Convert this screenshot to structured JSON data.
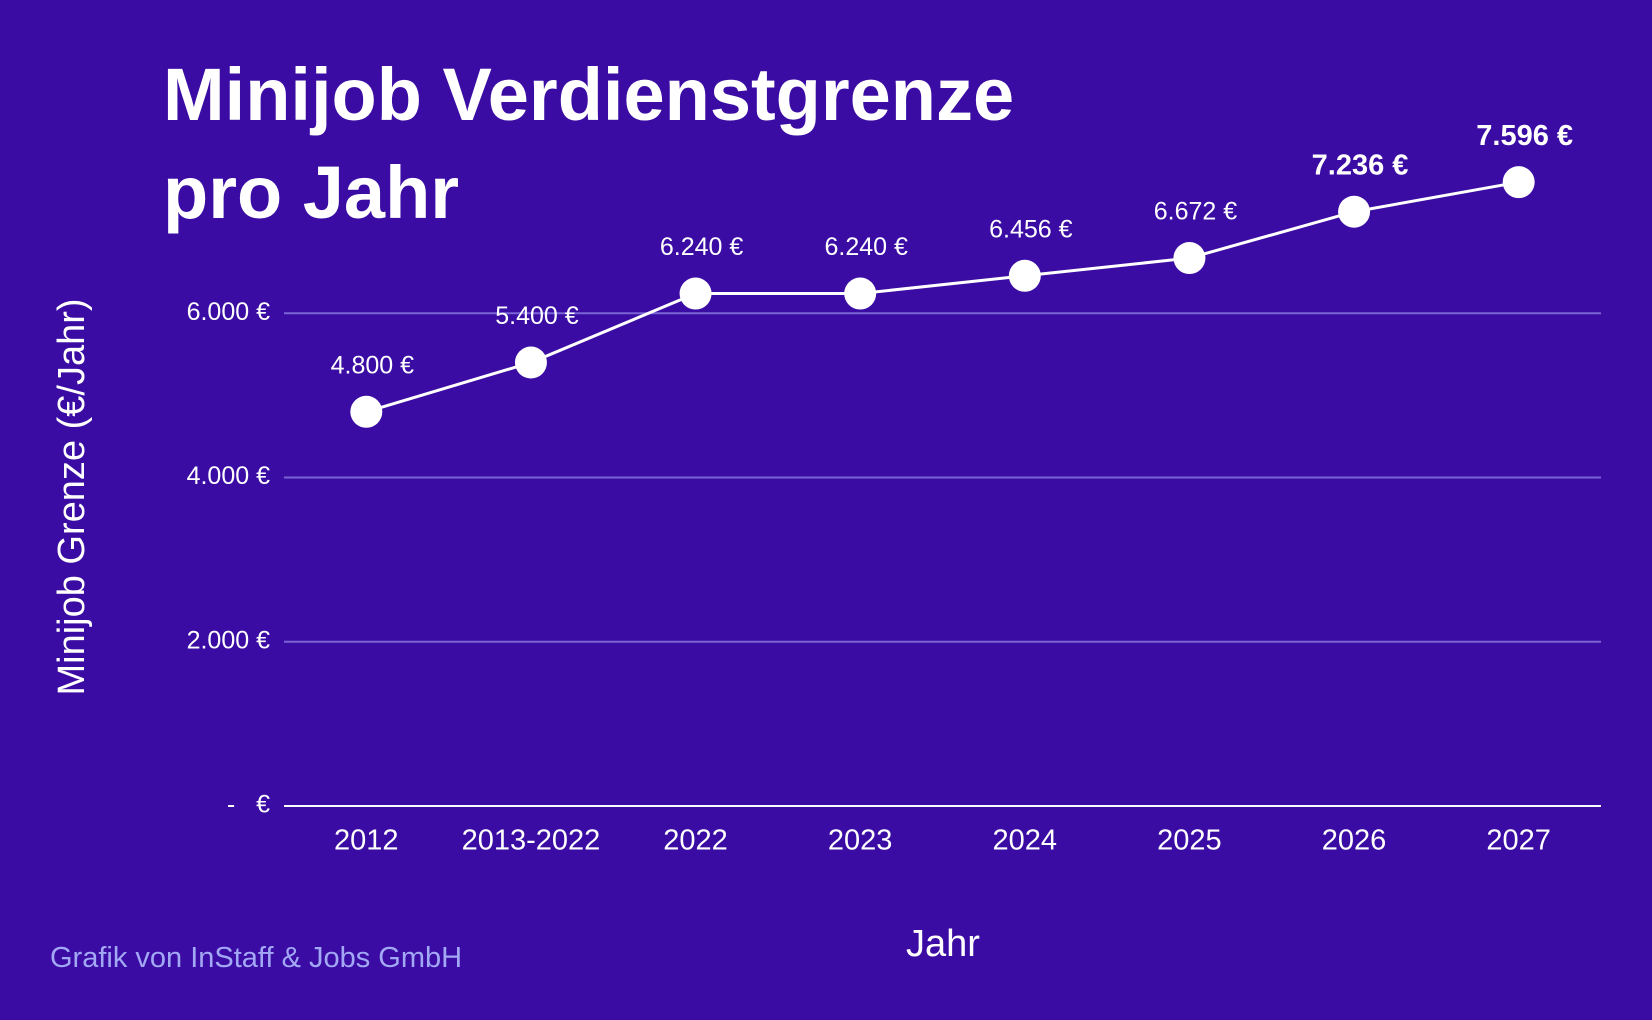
{
  "chart_data": {
    "type": "line",
    "title": "Minijob Verdienstgrenze pro Jahr",
    "x_label": "Jahr",
    "y_label": "Minijob Grenze (€/Jahr)",
    "footer": "Grafik von InStaff & Jobs GmbH",
    "categories": [
      "2012",
      "2013-2022",
      "2022",
      "2023",
      "2024",
      "2025",
      "2026",
      "2027"
    ],
    "series": [
      {
        "name": "Minijob Grenze",
        "color": "#ffffff",
        "values": [
          4800,
          5400,
          6240,
          6240,
          6456,
          6672,
          7236,
          7596
        ],
        "value_labels": [
          "4.800 €",
          "5.400 €",
          "6.240 €",
          "6.240 €",
          "6.456 €",
          "6.672 €",
          "7.236 €",
          "7.596 €"
        ]
      }
    ],
    "ylim": [
      0,
      8000
    ],
    "yticks": [
      {
        "value": 0,
        "label": "-   €"
      },
      {
        "value": 2000,
        "label": "2.000 €"
      },
      {
        "value": 4000,
        "label": "4.000 €"
      },
      {
        "value": 6000,
        "label": "6.000 €"
      }
    ],
    "grid": true
  }
}
